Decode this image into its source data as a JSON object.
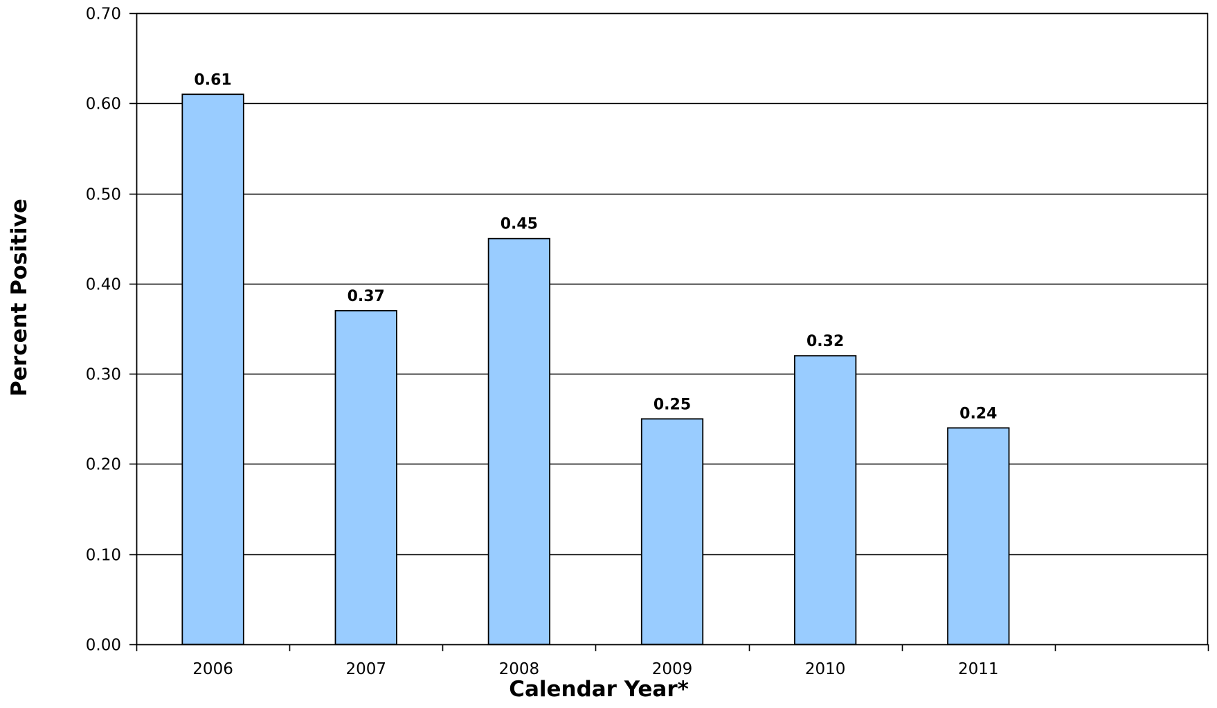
{
  "chart_data": {
    "type": "bar",
    "title": "",
    "xlabel": "Calendar Year*",
    "ylabel": "Percent Positive",
    "categories": [
      "2006",
      "2007",
      "2008",
      "2009",
      "2010",
      "2011"
    ],
    "values": [
      0.61,
      0.37,
      0.45,
      0.25,
      0.32,
      0.24
    ],
    "data_labels": [
      "0.61",
      "0.37",
      "0.45",
      "0.25",
      "0.32",
      "0.24"
    ],
    "ylim": [
      0,
      0.7
    ],
    "yticks": [
      0.0,
      0.1,
      0.2,
      0.3,
      0.4,
      0.5,
      0.6,
      0.7
    ],
    "ytick_labels": [
      "0.00",
      "0.10",
      "0.20",
      "0.30",
      "0.40",
      "0.50",
      "0.60",
      "0.70"
    ],
    "x_slots": 7,
    "grid": true,
    "legend": "none",
    "colors": {
      "bar_fill": "#99ccff",
      "bar_stroke": "#000000",
      "grid": "#000000",
      "axis": "#000000"
    }
  }
}
